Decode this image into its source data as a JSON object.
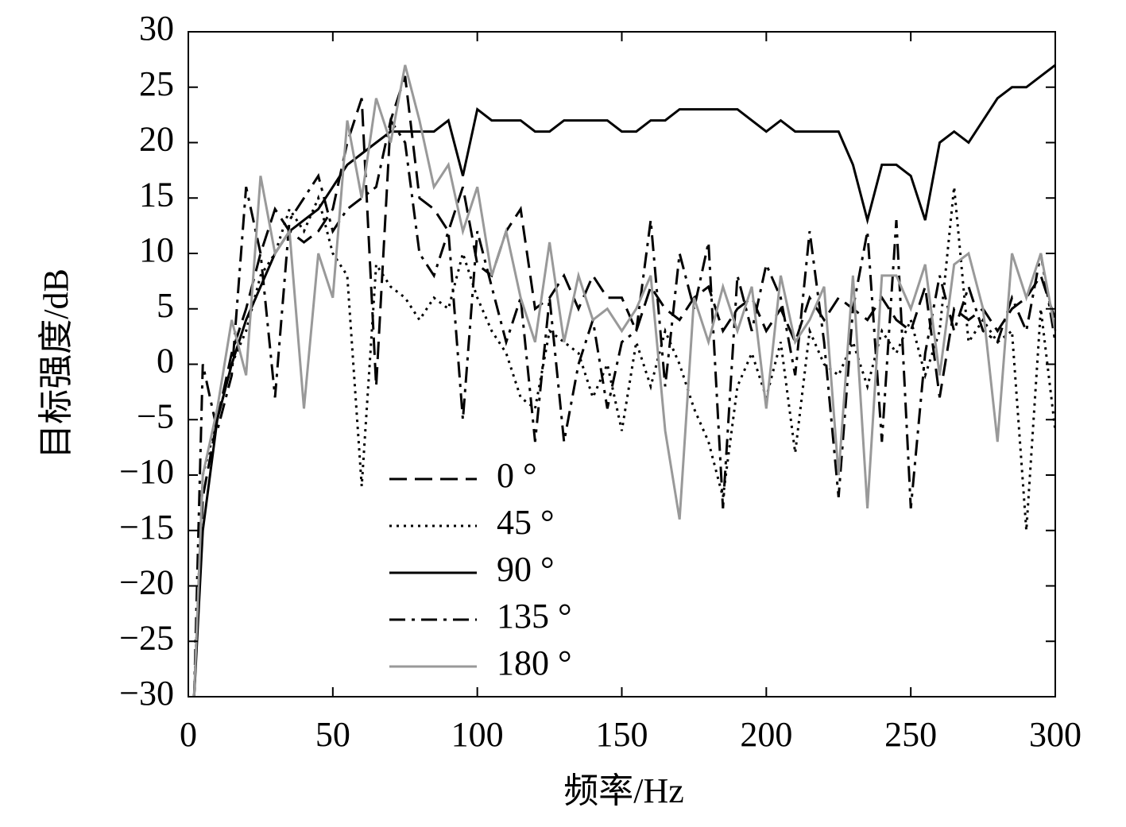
{
  "chart_data": {
    "type": "line",
    "xlabel": "频率/Hz",
    "ylabel": "目标强度/dB",
    "x": [
      2,
      5,
      10,
      15,
      20,
      25,
      30,
      35,
      40,
      45,
      50,
      55,
      60,
      65,
      70,
      75,
      80,
      85,
      90,
      95,
      100,
      105,
      110,
      115,
      120,
      125,
      130,
      135,
      140,
      145,
      150,
      155,
      160,
      165,
      170,
      175,
      180,
      185,
      190,
      195,
      200,
      205,
      210,
      215,
      220,
      225,
      230,
      235,
      240,
      245,
      250,
      255,
      260,
      265,
      270,
      275,
      280,
      285,
      290,
      295,
      300
    ],
    "series": [
      {
        "name": "0 °",
        "color": "#000000",
        "style": "dashed",
        "values": [
          -30,
          -12,
          -5,
          1,
          5,
          10,
          14,
          12,
          11,
          12,
          14,
          20,
          24,
          -2,
          22,
          26,
          15,
          14,
          12,
          16,
          9,
          8,
          12,
          14,
          5,
          6,
          8,
          5,
          8,
          6,
          6,
          3,
          7,
          5,
          4,
          6,
          7,
          3,
          5,
          6,
          3,
          5,
          2,
          6,
          4,
          6,
          5,
          4,
          6,
          4,
          3,
          7,
          -3,
          5,
          4,
          5,
          3,
          5,
          6,
          8,
          4
        ]
      },
      {
        "name": "45 °",
        "color": "#000000",
        "style": "dotted",
        "values": [
          -30,
          -10,
          -5,
          0,
          3,
          8,
          10,
          14,
          12,
          15,
          10,
          8,
          -11,
          9,
          7,
          6,
          4,
          6,
          5,
          10,
          6,
          3,
          1,
          -3,
          -4,
          3,
          2,
          1,
          -3,
          0,
          -6,
          2,
          -2,
          3,
          0,
          -4,
          -7,
          -12,
          -2,
          1,
          -3,
          2,
          -8,
          3,
          0,
          -1,
          2,
          -2,
          3,
          1,
          4,
          -1,
          3,
          16,
          2,
          4,
          2,
          3,
          -15,
          5,
          -6
        ]
      },
      {
        "name": "90 °",
        "color": "#000000",
        "style": "solid",
        "values": [
          -30,
          -15,
          -5,
          0,
          4,
          7,
          10,
          12,
          13,
          14,
          16,
          18,
          19,
          20,
          21,
          21,
          21,
          21,
          22,
          17,
          23,
          22,
          22,
          22,
          21,
          21,
          22,
          22,
          22,
          22,
          21,
          21,
          22,
          22,
          23,
          23,
          23,
          23,
          23,
          22,
          21,
          22,
          21,
          21,
          21,
          21,
          18,
          13,
          18,
          18,
          17,
          13,
          20,
          21,
          20,
          22,
          24,
          25,
          25,
          26,
          27
        ]
      },
      {
        "name": "135 °",
        "color": "#000000",
        "style": "dashdot",
        "values": [
          -30,
          0,
          -6,
          -1,
          16,
          10,
          -3,
          13,
          15,
          17,
          12,
          14,
          15,
          16,
          22,
          20,
          10,
          8,
          12,
          -5,
          12,
          7,
          2,
          6,
          -7,
          6,
          -7,
          0,
          4,
          -4,
          2,
          3,
          13,
          -2,
          10,
          5,
          11,
          -13,
          8,
          3,
          9,
          6,
          -1,
          12,
          2,
          -12,
          5,
          12,
          -7,
          13,
          -13,
          1,
          8,
          3,
          7,
          3,
          2,
          6,
          3,
          10,
          2
        ]
      },
      {
        "name": "180 °",
        "color": "#999999",
        "style": "solid",
        "values": [
          -30,
          -10,
          -4,
          4,
          -1,
          17,
          10,
          12,
          -4,
          10,
          6,
          22,
          15,
          24,
          20,
          27,
          22,
          16,
          18,
          12,
          16,
          8,
          12,
          6,
          2,
          11,
          2,
          8,
          4,
          5,
          3,
          5,
          8,
          -6,
          -14,
          6,
          2,
          7,
          3,
          7,
          -4,
          8,
          2,
          4,
          7,
          -10,
          8,
          -13,
          8,
          8,
          5,
          9,
          -1,
          9,
          10,
          5,
          -7,
          10,
          6,
          10,
          3
        ]
      }
    ],
    "xlim": [
      0,
      300
    ],
    "xticks": [
      0,
      50,
      100,
      150,
      200,
      250,
      300
    ],
    "ylim": [
      -30,
      30
    ],
    "yticks": [
      {
        "value": -30,
        "label": "−30"
      },
      {
        "value": -25,
        "label": "−25"
      },
      {
        "value": -20,
        "label": "−20"
      },
      {
        "value": -15,
        "label": "−15"
      },
      {
        "value": -10,
        "label": "−10"
      },
      {
        "value": -5,
        "label": "−5"
      },
      0,
      5,
      10,
      15,
      20,
      25,
      30
    ],
    "grid": false
  }
}
